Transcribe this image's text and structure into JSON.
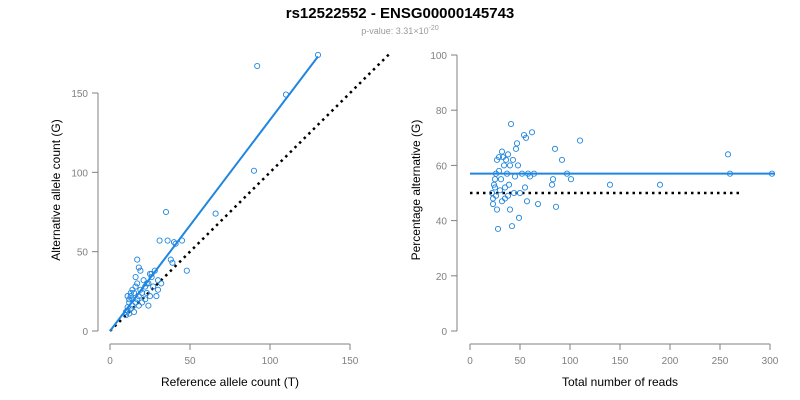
{
  "title": "rs12522552 - ENSG00000145743",
  "subtitle": {
    "prefix": "p-value: 3.31×10",
    "exponent": "-20"
  },
  "colors": {
    "series": "#1f86e0",
    "axis": "#808080",
    "reference": "#000000",
    "text": "#000000"
  },
  "chart_data": [
    {
      "type": "scatter",
      "title": "",
      "xlabel": "Reference allele count (T)",
      "ylabel": "Alternative allele count (G)",
      "xlim": [
        0,
        150
      ],
      "ylim": [
        0,
        150
      ],
      "xticks": [
        0,
        50,
        100,
        150
      ],
      "yticks": [
        0,
        50,
        100,
        150
      ],
      "grid": false,
      "points": [
        [
          10,
          12
        ],
        [
          10,
          10
        ],
        [
          11,
          13
        ],
        [
          11,
          15
        ],
        [
          12,
          11
        ],
        [
          12,
          18
        ],
        [
          12,
          20
        ],
        [
          13,
          14
        ],
        [
          13,
          22
        ],
        [
          14,
          16
        ],
        [
          14,
          20
        ],
        [
          15,
          12
        ],
        [
          15,
          24
        ],
        [
          16,
          18
        ],
        [
          16,
          28
        ],
        [
          17,
          20
        ],
        [
          17,
          30
        ],
        [
          17,
          45
        ],
        [
          18,
          16
        ],
        [
          18,
          22
        ],
        [
          18,
          40
        ],
        [
          19,
          26
        ],
        [
          20,
          24
        ],
        [
          20,
          18
        ],
        [
          21,
          32
        ],
        [
          22,
          20
        ],
        [
          22,
          28
        ],
        [
          23,
          24
        ],
        [
          24,
          30
        ],
        [
          24,
          16
        ],
        [
          25,
          22
        ],
        [
          26,
          34
        ],
        [
          26,
          36
        ],
        [
          27,
          28
        ],
        [
          28,
          38
        ],
        [
          29,
          22
        ],
        [
          30,
          32
        ],
        [
          30,
          26
        ],
        [
          31,
          57
        ],
        [
          32,
          30
        ],
        [
          35,
          75
        ],
        [
          36,
          57
        ],
        [
          38,
          45
        ],
        [
          39,
          43
        ],
        [
          40,
          56
        ],
        [
          41,
          55
        ],
        [
          45,
          57
        ],
        [
          48,
          38
        ],
        [
          66,
          74
        ],
        [
          90,
          101
        ],
        [
          92,
          167
        ],
        [
          110,
          149
        ],
        [
          130,
          174
        ],
        [
          14,
          26
        ],
        [
          16,
          34
        ],
        [
          19,
          38
        ],
        [
          23,
          30
        ],
        [
          25,
          36
        ],
        [
          11,
          22
        ],
        [
          13,
          24
        ]
      ],
      "fit_line": {
        "x": [
          0,
          130
        ],
        "y": [
          0,
          173
        ]
      },
      "reference_line": {
        "x": [
          0,
          175
        ],
        "y": [
          0,
          175
        ]
      }
    },
    {
      "type": "scatter",
      "title": "",
      "xlabel": "Total number of reads",
      "ylabel": "Percentage alternative (G)",
      "xlim": [
        0,
        300
      ],
      "ylim": [
        0,
        100
      ],
      "xticks": [
        0,
        50,
        100,
        150,
        200,
        250,
        300
      ],
      "yticks": [
        0,
        20,
        40,
        60,
        80,
        100
      ],
      "grid": false,
      "points": [
        [
          22,
          50
        ],
        [
          23,
          48
        ],
        [
          23,
          46
        ],
        [
          24,
          53
        ],
        [
          25,
          55
        ],
        [
          25,
          52
        ],
        [
          26,
          57
        ],
        [
          26,
          49
        ],
        [
          27,
          62
        ],
        [
          27,
          44
        ],
        [
          28,
          37
        ],
        [
          29,
          63
        ],
        [
          29,
          58
        ],
        [
          30,
          51
        ],
        [
          31,
          55
        ],
        [
          32,
          65
        ],
        [
          32,
          47
        ],
        [
          33,
          63
        ],
        [
          34,
          60
        ],
        [
          35,
          52
        ],
        [
          35,
          48
        ],
        [
          36,
          62
        ],
        [
          37,
          57
        ],
        [
          38,
          64
        ],
        [
          38,
          49
        ],
        [
          39,
          53
        ],
        [
          40,
          60
        ],
        [
          40,
          44
        ],
        [
          41,
          75
        ],
        [
          42,
          38
        ],
        [
          43,
          62
        ],
        [
          44,
          50
        ],
        [
          45,
          56
        ],
        [
          46,
          66
        ],
        [
          47,
          68
        ],
        [
          48,
          60
        ],
        [
          49,
          41
        ],
        [
          50,
          50
        ],
        [
          52,
          57
        ],
        [
          54,
          71
        ],
        [
          55,
          52
        ],
        [
          56,
          70
        ],
        [
          57,
          47
        ],
        [
          58,
          57
        ],
        [
          60,
          56
        ],
        [
          62,
          72
        ],
        [
          64,
          57
        ],
        [
          68,
          46
        ],
        [
          82,
          53
        ],
        [
          83,
          55
        ],
        [
          85,
          66
        ],
        [
          86,
          45
        ],
        [
          92,
          62
        ],
        [
          97,
          57
        ],
        [
          101,
          55
        ],
        [
          110,
          69
        ],
        [
          140,
          53
        ],
        [
          190,
          53
        ],
        [
          258,
          64
        ],
        [
          260,
          57
        ],
        [
          302,
          57
        ]
      ],
      "fit_line": {
        "x": [
          0,
          305
        ],
        "y": [
          57,
          57
        ]
      },
      "reference_line": {
        "x": [
          0,
          272
        ],
        "y": [
          50,
          50
        ]
      }
    }
  ]
}
